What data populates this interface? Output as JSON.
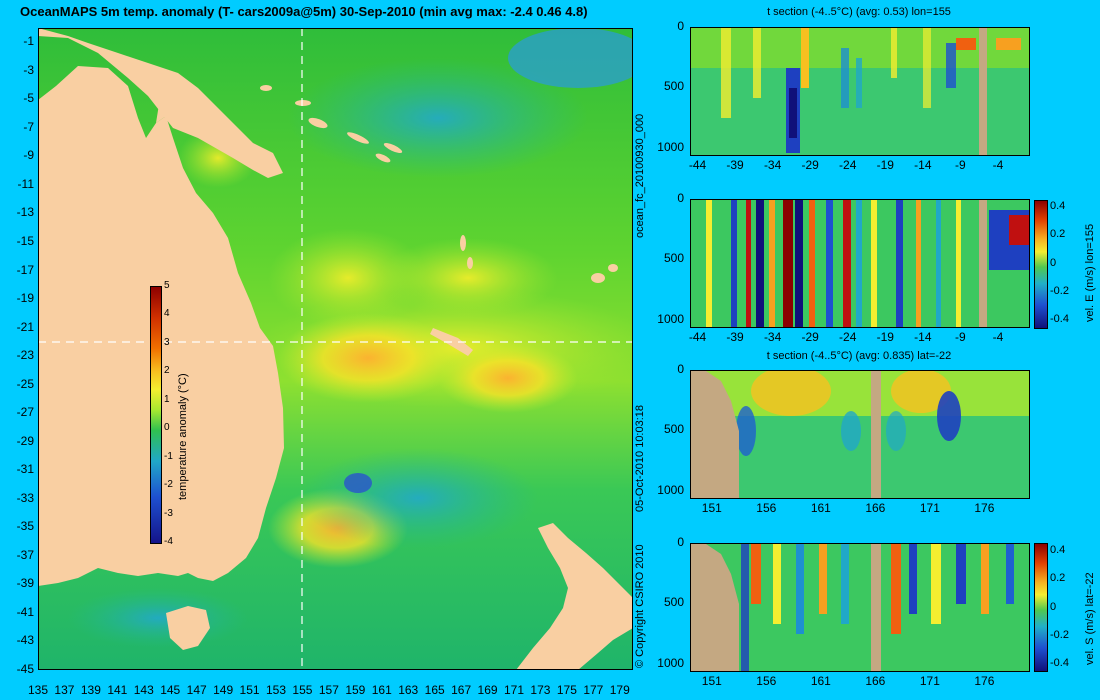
{
  "title": "OceanMAPS 5m temp. anomaly (T- cars2009a@5m) 30-Sep-2010 (min avg max: -2.4 0.46 4.8)",
  "colors": {
    "background": "#00ccff",
    "land": "#f9cfa2",
    "section_land": "#c4a882",
    "crosshair": "#ffffff"
  },
  "map": {
    "xticks": [
      "135",
      "137",
      "139",
      "141",
      "143",
      "145",
      "147",
      "149",
      "151",
      "153",
      "155",
      "157",
      "159",
      "161",
      "163",
      "165",
      "167",
      "169",
      "171",
      "173",
      "175",
      "177",
      "179"
    ],
    "yticks": [
      "-1",
      "-3",
      "-5",
      "-7",
      "-9",
      "-11",
      "-13",
      "-15",
      "-17",
      "-19",
      "-21",
      "-23",
      "-25",
      "-27",
      "-29",
      "-31",
      "-33",
      "-35",
      "-37",
      "-39",
      "-41",
      "-43",
      "-45"
    ],
    "crosshair_lon": 155,
    "crosshair_lat": -22,
    "colorbar": {
      "label": "temperature anomaly (°C)",
      "ticks": [
        "5",
        "4",
        "3",
        "2",
        "1",
        "0",
        "-1",
        "-2",
        "-3",
        "-4"
      ],
      "range": [
        -4,
        5
      ]
    }
  },
  "sections": [
    {
      "title": "t section (-4..5°C) (avg: 0.53) lon=155",
      "yticks": [
        "0",
        "500",
        "1000"
      ],
      "xticks": [
        "-44",
        "-39",
        "-34",
        "-29",
        "-24",
        "-19",
        "-14",
        "-9",
        "-4"
      ],
      "colorbar": null
    },
    {
      "title": "",
      "yticks": [
        "0",
        "500",
        "1000"
      ],
      "xticks": [
        "-44",
        "-39",
        "-34",
        "-29",
        "-24",
        "-19",
        "-14",
        "-9",
        "-4"
      ],
      "colorbar": {
        "label": "vel. E (m/s) lon=155",
        "ticks": [
          "0.4",
          "0.2",
          "0",
          "-0.2",
          "-0.4"
        ]
      }
    },
    {
      "title": "t section (-4..5°C) (avg: 0.835) lat=-22",
      "yticks": [
        "0",
        "500",
        "1000"
      ],
      "xticks": [
        "151",
        "156",
        "161",
        "166",
        "171",
        "176"
      ],
      "colorbar": null
    },
    {
      "title": "",
      "yticks": [
        "0",
        "500",
        "1000"
      ],
      "xticks": [
        "151",
        "156",
        "161",
        "166",
        "171",
        "176"
      ],
      "colorbar": {
        "label": "vel. S (m/s) lat=-22",
        "ticks": [
          "0.4",
          "0.2",
          "0",
          "-0.2",
          "-0.4"
        ]
      }
    }
  ],
  "side_labels": {
    "run": "ocean_fc_20100930_000",
    "date": "05-Oct-2010 10:03:18",
    "copyright": "© Copyright CSIRO 2010"
  },
  "chart_data": [
    {
      "type": "heatmap",
      "title": "OceanMAPS 5m temp. anomaly (T- cars2009a@5m) 30-Sep-2010 (min avg max: -2.4 0.46 4.8)",
      "xlabel": "",
      "ylabel": "",
      "xlim": [
        135,
        180
      ],
      "ylim": [
        -45,
        0
      ],
      "clim": [
        -4,
        5
      ],
      "summary": {
        "min": -2.4,
        "avg": 0.46,
        "max": 4.8
      }
    },
    {
      "type": "heatmap",
      "title": "t section (-4..5°C) (avg: 0.53) lon=155",
      "xlim": [
        -45,
        0
      ],
      "ylim": [
        1050,
        0
      ],
      "clim": [
        -4,
        5
      ],
      "avg": 0.53
    },
    {
      "type": "heatmap",
      "title": "",
      "xlim": [
        -45,
        0
      ],
      "ylim": [
        1050,
        0
      ],
      "clim": [
        -0.4,
        0.4
      ],
      "colorbar_label": "vel. E (m/s) lon=155"
    },
    {
      "type": "heatmap",
      "title": "t section (-4..5°C) (avg: 0.835) lat=-22",
      "xlim": [
        149,
        180
      ],
      "ylim": [
        1050,
        0
      ],
      "clim": [
        -4,
        5
      ],
      "avg": 0.835
    },
    {
      "type": "heatmap",
      "title": "",
      "xlim": [
        149,
        180
      ],
      "ylim": [
        1050,
        0
      ],
      "clim": [
        -0.4,
        0.4
      ],
      "colorbar_label": "vel. S (m/s) lat=-22"
    }
  ]
}
